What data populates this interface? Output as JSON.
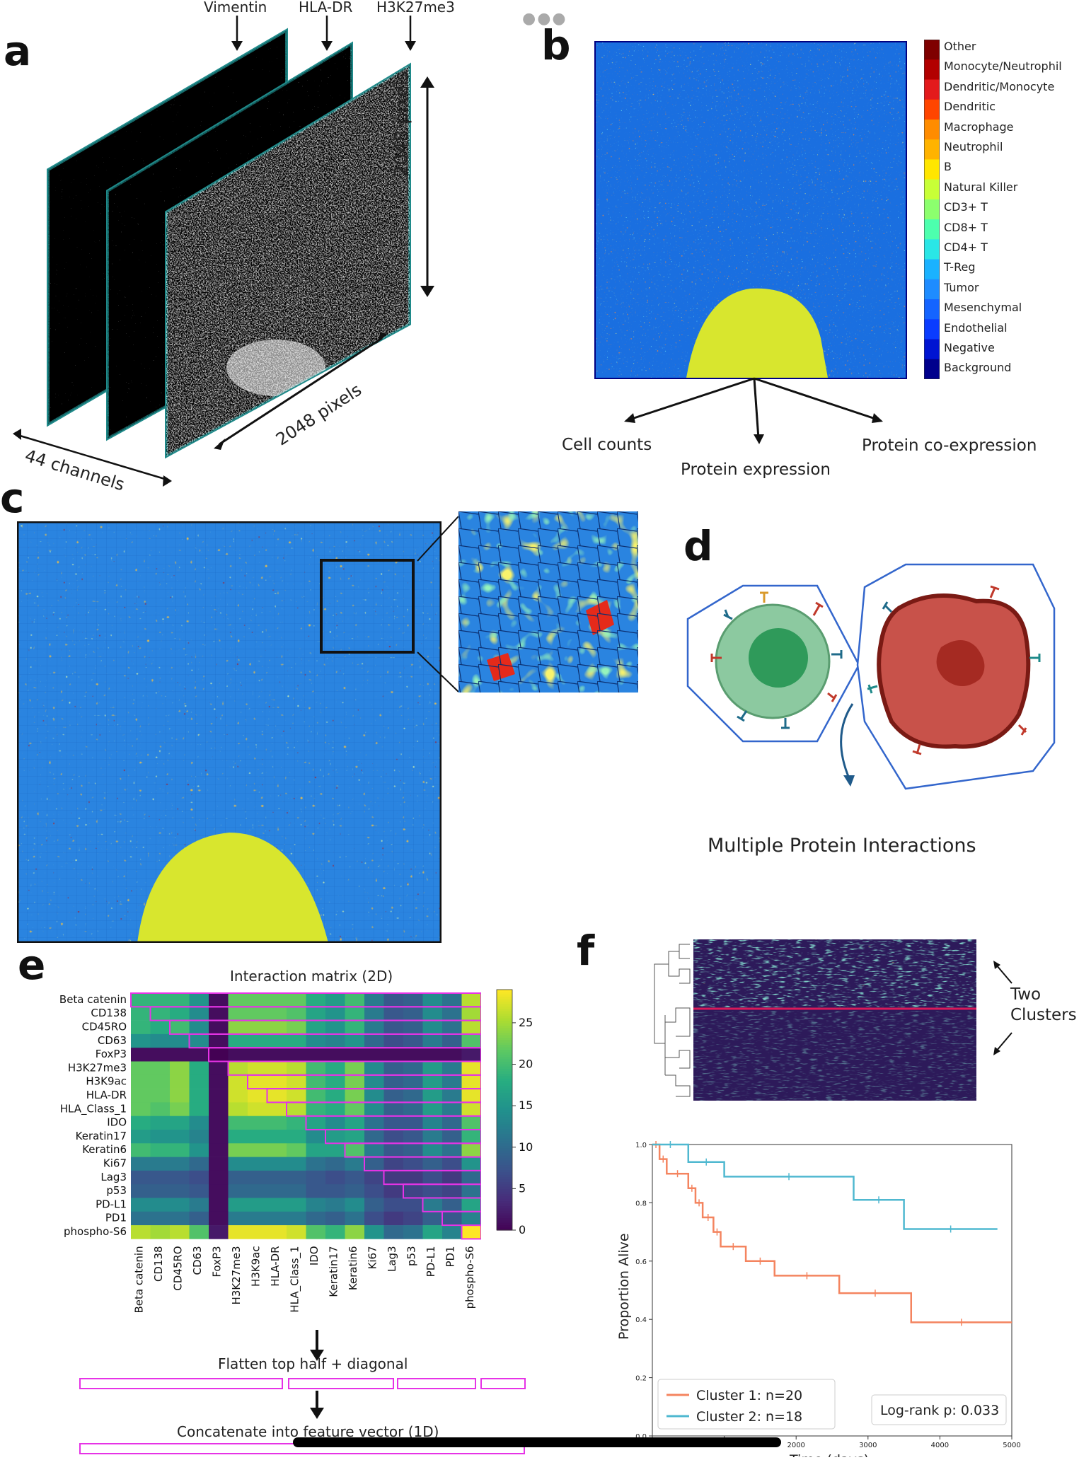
{
  "panel_a": {
    "letter": "a",
    "channel_names": [
      "Vimentin",
      "HLA-DR",
      "H3K27me3"
    ],
    "height_label": "2048 pixels",
    "width_label": "2048 pixels",
    "depth_label": "44 channels"
  },
  "panel_b": {
    "letter": "b",
    "legend": [
      {
        "label": "Other",
        "color": "#7f0000"
      },
      {
        "label": "Monocyte/Neutrophil",
        "color": "#b20000"
      },
      {
        "label": "Dendritic/Monocyte",
        "color": "#e31a1c"
      },
      {
        "label": "Dendritic",
        "color": "#ff4500"
      },
      {
        "label": "Macrophage",
        "color": "#ff8c00"
      },
      {
        "label": "Neutrophil",
        "color": "#ffb300"
      },
      {
        "label": "B",
        "color": "#ffe600"
      },
      {
        "label": "Natural Killer",
        "color": "#c8ff37"
      },
      {
        "label": "CD3+ T",
        "color": "#8cff6e"
      },
      {
        "label": "CD8+ T",
        "color": "#4dffae"
      },
      {
        "label": "CD4+ T",
        "color": "#2ae6e6"
      },
      {
        "label": "T-Reg",
        "color": "#1ab2ff"
      },
      {
        "label": "Tumor",
        "color": "#1e8cff"
      },
      {
        "label": "Mesenchymal",
        "color": "#1464ff"
      },
      {
        "label": "Endothelial",
        "color": "#0a3cff"
      },
      {
        "label": "Negative",
        "color": "#0014d2"
      },
      {
        "label": "Background",
        "color": "#00008c"
      }
    ],
    "outputs": [
      "Cell counts",
      "Protein expression",
      "Protein co-expression"
    ]
  },
  "panel_c": {
    "letter": "c"
  },
  "panel_d": {
    "letter": "d",
    "caption": "Multiple Protein Interactions"
  },
  "panel_e": {
    "letter": "e",
    "title": "Interaction matrix (2D)",
    "colorbar_ticks": [
      "25",
      "20",
      "15",
      "10",
      "5",
      "0"
    ],
    "flatten_label": "Flatten top half + diagonal",
    "concat_label": "Concatenate into feature vector (1D)"
  },
  "panel_f": {
    "letter": "f",
    "clusters_label": [
      "Two",
      "Clusters"
    ]
  },
  "chart_data": [
    {
      "type": "heatmap",
      "title": "Interaction matrix (2D)",
      "rows": [
        "Beta catenin",
        "CD138",
        "CD45RO",
        "CD63",
        "FoxP3",
        "H3K27me3",
        "H3K9ac",
        "HLA-DR",
        "HLA_Class_1",
        "IDO",
        "Keratin17",
        "Keratin6",
        "Ki67",
        "Lag3",
        "p53",
        "PD-L1",
        "PD1",
        "phospho-S6"
      ],
      "columns": [
        "Beta catenin",
        "CD138",
        "CD45RO",
        "CD63",
        "FoxP3",
        "H3K27me3",
        "H3K9ac",
        "HLA-DR",
        "HLA_Class_1",
        "IDO",
        "Keratin17",
        "Keratin6",
        "Ki67",
        "Lag3",
        "p53",
        "PD-L1",
        "PD1",
        "phospho-S6"
      ],
      "values": [
        [
          19,
          19,
          19,
          15,
          1,
          22,
          22,
          22,
          22,
          18,
          16,
          20,
          12,
          8,
          9,
          14,
          11,
          26
        ],
        [
          19,
          19,
          18,
          14,
          1,
          22,
          22,
          22,
          21,
          17,
          15,
          19,
          12,
          8,
          9,
          14,
          11,
          25
        ],
        [
          19,
          18,
          20,
          14,
          1,
          24,
          24,
          24,
          23,
          17,
          15,
          19,
          12,
          8,
          9,
          14,
          11,
          26
        ],
        [
          15,
          14,
          14,
          14,
          1,
          18,
          18,
          18,
          18,
          14,
          13,
          15,
          10,
          7,
          8,
          12,
          9,
          21
        ],
        [
          1,
          1,
          1,
          1,
          0,
          1,
          1,
          1,
          1,
          1,
          1,
          1,
          1,
          1,
          1,
          1,
          1,
          2
        ],
        [
          22,
          22,
          24,
          18,
          1,
          26,
          27,
          27,
          26,
          20,
          18,
          23,
          14,
          9,
          10,
          16,
          12,
          28
        ],
        [
          22,
          22,
          24,
          18,
          1,
          27,
          28,
          28,
          27,
          20,
          18,
          23,
          14,
          9,
          10,
          16,
          12,
          28
        ],
        [
          22,
          22,
          24,
          18,
          1,
          27,
          28,
          28,
          27,
          20,
          18,
          23,
          14,
          9,
          10,
          16,
          12,
          28
        ],
        [
          22,
          21,
          23,
          18,
          1,
          26,
          27,
          27,
          26,
          19,
          18,
          22,
          14,
          9,
          10,
          16,
          12,
          27
        ],
        [
          18,
          17,
          17,
          14,
          1,
          20,
          20,
          20,
          19,
          17,
          14,
          17,
          11,
          8,
          8,
          13,
          10,
          21
        ],
        [
          16,
          15,
          15,
          13,
          1,
          18,
          18,
          18,
          18,
          14,
          16,
          17,
          10,
          7,
          8,
          12,
          9,
          19
        ],
        [
          20,
          19,
          19,
          15,
          1,
          23,
          23,
          23,
          22,
          17,
          17,
          21,
          12,
          8,
          9,
          14,
          11,
          24
        ],
        [
          12,
          12,
          12,
          10,
          1,
          14,
          14,
          14,
          14,
          11,
          10,
          12,
          9,
          6,
          7,
          9,
          7,
          15
        ],
        [
          8,
          8,
          8,
          7,
          1,
          9,
          9,
          9,
          9,
          8,
          7,
          8,
          6,
          5,
          5,
          7,
          5,
          10
        ],
        [
          9,
          9,
          9,
          8,
          1,
          10,
          10,
          10,
          10,
          8,
          8,
          9,
          7,
          5,
          6,
          7,
          6,
          11
        ],
        [
          14,
          14,
          14,
          12,
          1,
          16,
          16,
          16,
          16,
          13,
          12,
          14,
          9,
          7,
          7,
          12,
          9,
          17
        ],
        [
          11,
          11,
          11,
          9,
          1,
          12,
          12,
          12,
          12,
          10,
          9,
          11,
          7,
          5,
          6,
          9,
          8,
          13
        ],
        [
          26,
          25,
          26,
          21,
          2,
          28,
          28,
          28,
          27,
          21,
          19,
          24,
          15,
          10,
          11,
          17,
          13,
          29
        ]
      ],
      "colorscale": "viridis",
      "vmin": 0,
      "vmax": 29
    },
    {
      "type": "line",
      "subtype": "kaplan-meier",
      "xlabel": "Time (days)",
      "ylabel": "Proportion Alive",
      "xlim": [
        0,
        5000
      ],
      "ylim": [
        0,
        1
      ],
      "x_ticks": [
        "0",
        "1000",
        "2000",
        "3000",
        "4000",
        "5000"
      ],
      "y_ticks": [
        "0.0",
        "0.2",
        "0.4",
        "0.6",
        "0.8",
        "1.0"
      ],
      "series": [
        {
          "name": "Cluster 1: n=20",
          "color": "#f4845f",
          "steps": [
            [
              0,
              1.0
            ],
            [
              100,
              0.95
            ],
            [
              200,
              0.9
            ],
            [
              500,
              0.85
            ],
            [
              600,
              0.8
            ],
            [
              700,
              0.75
            ],
            [
              850,
              0.7
            ],
            [
              950,
              0.65
            ],
            [
              1300,
              0.6
            ],
            [
              1700,
              0.55
            ],
            [
              2600,
              0.49
            ],
            [
              3600,
              0.39
            ],
            [
              5000,
              0.39
            ]
          ]
        },
        {
          "name": "Cluster 2: n=18",
          "color": "#4fb8d0",
          "steps": [
            [
              0,
              1.0
            ],
            [
              500,
              0.94
            ],
            [
              1000,
              0.89
            ],
            [
              2800,
              0.81
            ],
            [
              3500,
              0.71
            ],
            [
              4800,
              0.71
            ]
          ]
        }
      ],
      "annotation": "Log-rank p: 0.033"
    }
  ]
}
